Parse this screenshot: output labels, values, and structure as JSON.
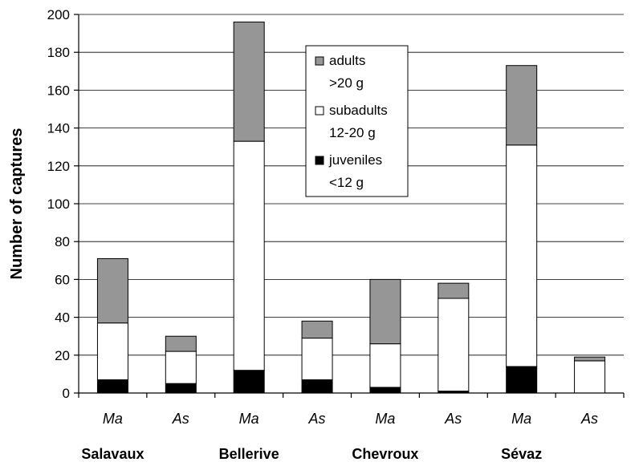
{
  "chart_data": {
    "type": "bar",
    "stacked": true,
    "ylabel": "Number of captures",
    "ylim": [
      0,
      200
    ],
    "yticks": [
      0,
      20,
      40,
      60,
      80,
      100,
      120,
      140,
      160,
      180,
      200
    ],
    "grid": true,
    "legend_position": "top-center",
    "categories": [
      "Ma",
      "As",
      "Ma",
      "As",
      "Ma",
      "As",
      "Ma",
      "As"
    ],
    "groups": [
      "Salavaux",
      "Bellerive",
      "Chevroux",
      "Sévaz"
    ],
    "series": [
      {
        "name": "juveniles",
        "name_line2": "<12 g",
        "color": "#000000",
        "values": [
          7,
          5,
          12,
          7,
          3,
          1,
          14,
          0
        ]
      },
      {
        "name": "subadults",
        "name_line2": "12-20 g",
        "color": "#ffffff",
        "values": [
          30,
          17,
          121,
          22,
          23,
          49,
          117,
          17
        ]
      },
      {
        "name": "adults",
        "name_line2": ">20 g",
        "color": "#969696",
        "values": [
          34,
          8,
          63,
          9,
          34,
          8,
          42,
          2
        ]
      }
    ]
  }
}
